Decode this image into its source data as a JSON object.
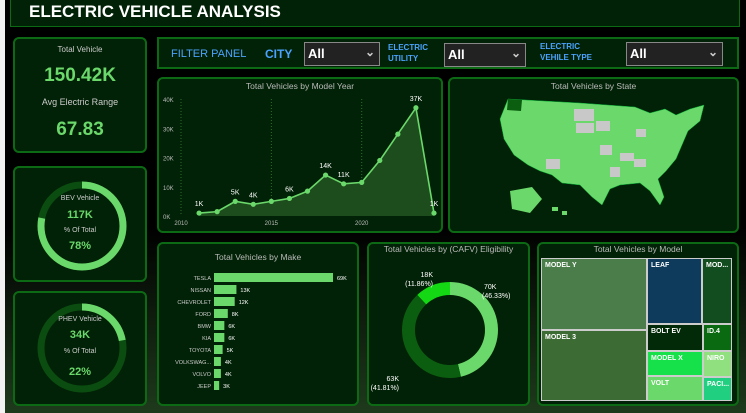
{
  "title": "ELECTRIC  VEHICLE ANALYSIS",
  "kpi": {
    "total_label": "Total Vehicle",
    "total_value": "150.42K",
    "range_label": "Avg Electric Range",
    "range_value": "67.83"
  },
  "bev": {
    "label": "BEV Vehicle",
    "value": "117K",
    "pct_label": "% Of Total",
    "pct": "78%",
    "fraction": 0.78
  },
  "phev": {
    "label": "PHEV Vehicle",
    "value": "34K",
    "pct_label": "% Of Total",
    "pct": "22%",
    "fraction": 0.22
  },
  "filters": {
    "panel_label": "FILTER PANEL",
    "city_label": "CITY",
    "city_value": "All",
    "utility_label1": "ELECTRIC",
    "utility_label2": "UTILITY",
    "utility_value": "All",
    "type_label1": "ELECTRIC",
    "type_label2": "VEHILE TYPE",
    "type_value": "All"
  },
  "map": {
    "title": "Total Vehicles by State"
  },
  "chart_data": [
    {
      "type": "area",
      "title": "Total Vehicles by Model Year",
      "x": [
        2011,
        2012,
        2013,
        2014,
        2015,
        2016,
        2017,
        2018,
        2019,
        2020,
        2021,
        2022,
        2023,
        2024
      ],
      "values": [
        1000,
        1500,
        5000,
        4000,
        5000,
        6000,
        8500,
        14000,
        11000,
        11500,
        19000,
        28000,
        37000,
        1000
      ],
      "data_labels": [
        "1K",
        "",
        "5K",
        "4K",
        "",
        "6K",
        "",
        "14K",
        "11K",
        "",
        "",
        "",
        "37K",
        "1K"
      ],
      "xticks": [
        "2010",
        "2015",
        "2020"
      ],
      "yticks": [
        "0K",
        "10K",
        "20K",
        "30K",
        "40K"
      ],
      "ylim": [
        0,
        40000
      ],
      "xlim": [
        2010,
        2024
      ]
    },
    {
      "type": "bar",
      "title": "Total Vehicles by Make",
      "categories": [
        "TESLA",
        "NISSAN",
        "CHEVROLET",
        "FORD",
        "BMW",
        "KIA",
        "TOYOTA",
        "VOLKSWAG...",
        "VOLVO",
        "JEEP"
      ],
      "values": [
        69,
        13,
        12,
        8,
        6,
        6,
        5,
        4,
        4,
        3
      ],
      "labels": [
        "69K",
        "13K",
        "12K",
        "8K",
        "6K",
        "6K",
        "5K",
        "4K",
        "4K",
        "3K"
      ]
    },
    {
      "type": "pie",
      "title": "Total Vehicles by (CAFV) Eligibility",
      "slices": [
        {
          "value": 70,
          "label": "70K",
          "pct": "(46.33%)",
          "color": "#6bd86b"
        },
        {
          "value": 63,
          "label": "63K",
          "pct": "(41.81%)",
          "color": "#0b5e10"
        },
        {
          "value": 18,
          "label": "18K",
          "pct": "(11.86%)",
          "color": "#14d814"
        }
      ]
    },
    {
      "type": "treemap",
      "title": "Total Vehicles by Model",
      "items": [
        "MODEL Y",
        "MODEL 3",
        "LEAF",
        "MOD...",
        "BOLT EV",
        "ID.4",
        "MODEL X",
        "NIRO",
        "VOLT",
        "PACI..."
      ]
    }
  ]
}
